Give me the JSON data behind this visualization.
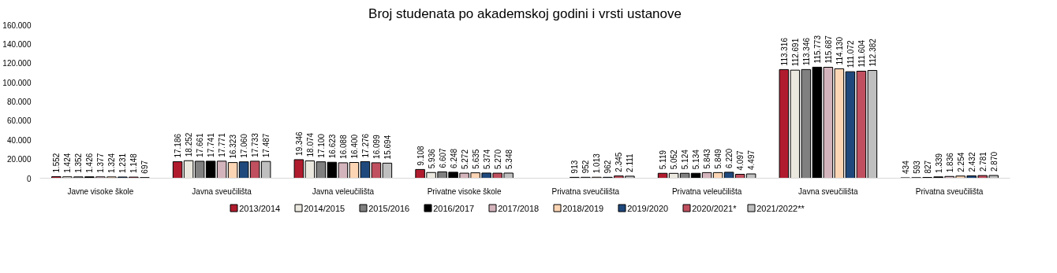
{
  "chart_data": {
    "type": "bar",
    "title": "Broj studenata po akademskoj godini i vrsti ustanove",
    "categories": [
      "Javne visoke škole",
      "Javna sveučilišta",
      "Javna veleučilišta",
      "Privatne visoke škole",
      "Privatna sveučilišta",
      "Privatna veleučilišta",
      "Javna sveučilišta",
      "Privatna sveučilišta"
    ],
    "series": [
      {
        "name": "2013/2014",
        "color": "#b01c2e",
        "values": [
          1552,
          17186,
          19346,
          9108,
          null,
          5119,
          113316,
          434
        ],
        "value_labels": [
          "1.552",
          "17.186",
          "19.346",
          "9.108",
          null,
          "5.119",
          "113.316",
          "434"
        ]
      },
      {
        "name": "2014/2015",
        "color": "#ebe8df",
        "values": [
          1424,
          18252,
          18074,
          5936,
          null,
          5052,
          112691,
          593
        ],
        "value_labels": [
          "1.424",
          "18.252",
          "18.074",
          "5.936",
          null,
          "5.052",
          "112.691",
          "593"
        ]
      },
      {
        "name": "2015/2016",
        "color": "#808080",
        "values": [
          1352,
          17661,
          17100,
          6607,
          null,
          5124,
          113346,
          827
        ],
        "value_labels": [
          "1.352",
          "17.661",
          "17.100",
          "6.607",
          null,
          "5.124",
          "113.346",
          "827"
        ]
      },
      {
        "name": "2016/2017",
        "color": "#000000",
        "values": [
          1426,
          17741,
          16623,
          6248,
          913,
          5134,
          115773,
          1339
        ],
        "value_labels": [
          "1.426",
          "17.741",
          "16.623",
          "6.248",
          "913",
          "5.134",
          "115.773",
          "1.339"
        ]
      },
      {
        "name": "2017/2018",
        "color": "#d4b4bc",
        "values": [
          1377,
          17771,
          16088,
          5272,
          952,
          5843,
          115687,
          1836
        ],
        "value_labels": [
          "1.377",
          "17.771",
          "16.088",
          "5.272",
          "952",
          "5.843",
          "115.687",
          "1.836"
        ]
      },
      {
        "name": "2018/2019",
        "color": "#fcd5b4",
        "values": [
          1324,
          16323,
          16400,
          5635,
          1013,
          5849,
          114130,
          2254
        ],
        "value_labels": [
          "1.324",
          "16.323",
          "16.400",
          "5.635",
          "1.013",
          "5.849",
          "114.130",
          "2.254"
        ]
      },
      {
        "name": "2019/2020",
        "color": "#1f497d",
        "values": [
          1231,
          17060,
          17276,
          5374,
          962,
          6220,
          111072,
          2432
        ],
        "value_labels": [
          "1.231",
          "17.060",
          "17.276",
          "5.374",
          "962",
          "6.220",
          "111.072",
          "2.432"
        ]
      },
      {
        "name": "2020/2021*",
        "color": "#c0505f",
        "values": [
          1148,
          17733,
          16099,
          5270,
          2345,
          4097,
          111604,
          2781
        ],
        "value_labels": [
          "1.148",
          "17.733",
          "16.099",
          "5.270",
          "2.345",
          "4.097",
          "111.604",
          "2.781"
        ]
      },
      {
        "name": "2021/2022**",
        "color": "#bfbfbf",
        "values": [
          697,
          17487,
          15694,
          5348,
          2111,
          4497,
          112382,
          2870
        ],
        "value_labels": [
          "697",
          "17.487",
          "15.694",
          "5.348",
          "2.111",
          "4.497",
          "112.382",
          "2.870"
        ]
      }
    ],
    "ylim": [
      0,
      160000
    ],
    "yticks": [
      {
        "value": 0,
        "label": "0"
      },
      {
        "value": 20000,
        "label": "20.000"
      },
      {
        "value": 40000,
        "label": "40.000"
      },
      {
        "value": 60000,
        "label": "60.000"
      },
      {
        "value": 80000,
        "label": "80.000"
      },
      {
        "value": 100000,
        "label": "100.000"
      },
      {
        "value": 120000,
        "label": "120.000"
      },
      {
        "value": 140000,
        "label": "140.000"
      },
      {
        "value": 160000,
        "label": "160.000"
      }
    ],
    "grid": false,
    "legend": "bottom"
  }
}
